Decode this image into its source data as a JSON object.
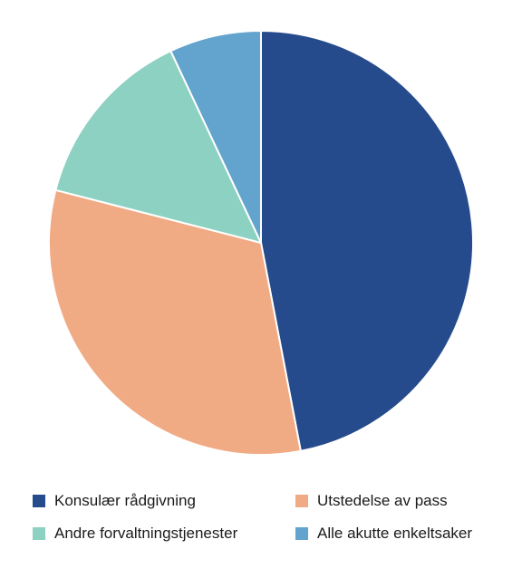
{
  "chart_data": {
    "type": "pie",
    "title": "",
    "start_angle_deg": 0,
    "direction": "clockwise",
    "slices": [
      {
        "label": "Konsulær rådgivning",
        "value": 47.0,
        "color": "#264b8c"
      },
      {
        "label": "Utstedelse av pass",
        "value": 32.0,
        "color": "#f1ab84"
      },
      {
        "label": "Andre forvaltningstjenester",
        "value": 14.0,
        "color": "#8cd1c1"
      },
      {
        "label": "Alle akutte enkeltsaker",
        "value": 7.0,
        "color": "#62a4cd"
      }
    ],
    "legend_position": "bottom"
  }
}
